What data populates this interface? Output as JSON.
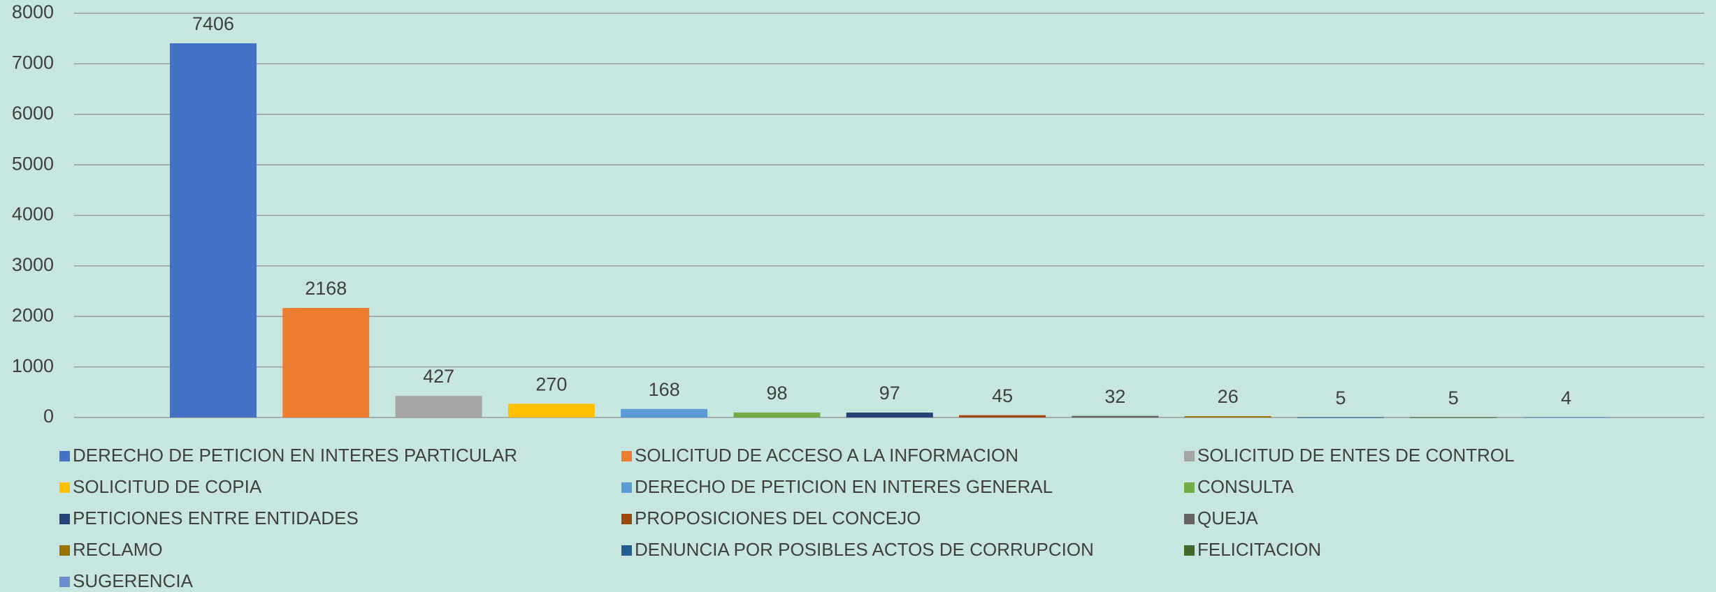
{
  "chart_data": {
    "type": "bar",
    "categories": [
      null
    ],
    "series": [
      {
        "name": "DERECHO DE PETICION EN INTERES PARTICULAR",
        "color": "#4472c4",
        "values": [
          7406
        ]
      },
      {
        "name": "SOLICITUD DE ACCESO A LA INFORMACION",
        "color": "#ed7d31",
        "values": [
          2168
        ]
      },
      {
        "name": "SOLICITUD DE ENTES DE CONTROL",
        "color": "#a5a5a5",
        "values": [
          427
        ]
      },
      {
        "name": "SOLICITUD DE COPIA",
        "color": "#ffc000",
        "values": [
          270
        ]
      },
      {
        "name": "DERECHO DE PETICION EN INTERES GENERAL",
        "color": "#5b9bd5",
        "values": [
          168
        ]
      },
      {
        "name": "CONSULTA",
        "color": "#70ad47",
        "values": [
          98
        ]
      },
      {
        "name": "PETICIONES ENTRE ENTIDADES",
        "color": "#264478",
        "values": [
          97
        ]
      },
      {
        "name": "PROPOSICIONES DEL CONCEJO",
        "color": "#9e480e",
        "values": [
          45
        ]
      },
      {
        "name": "QUEJA",
        "color": "#636363",
        "values": [
          32
        ]
      },
      {
        "name": "RECLAMO",
        "color": "#997300",
        "values": [
          26
        ]
      },
      {
        "name": "DENUNCIA POR POSIBLES ACTOS DE CORRUPCION",
        "color": "#255e91",
        "values": [
          5
        ]
      },
      {
        "name": "FELICITACION",
        "color": "#43682b",
        "values": [
          5
        ]
      },
      {
        "name": "SUGERENCIA",
        "color": "#698ed0",
        "values": [
          4
        ]
      }
    ],
    "ylim": [
      0,
      8000
    ],
    "yticks": [
      0,
      1000,
      2000,
      3000,
      4000,
      5000,
      6000,
      7000,
      8000
    ],
    "grid": true,
    "legend": "bottom"
  }
}
